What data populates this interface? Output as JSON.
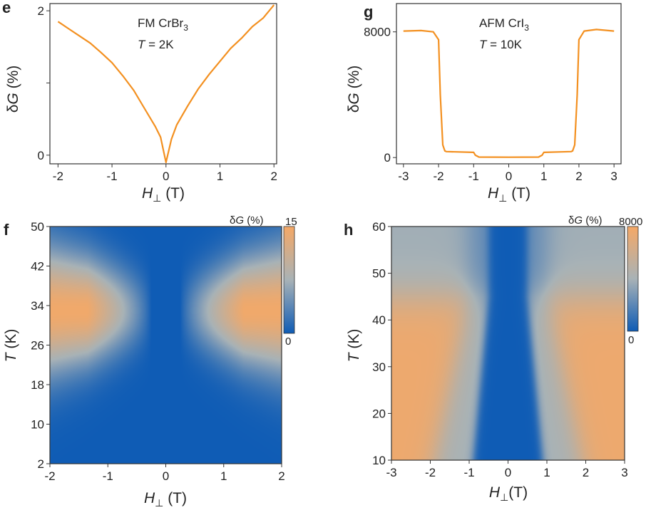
{
  "chart_data": [
    {
      "panel": "e",
      "type": "line",
      "annotation": [
        "FM CrBr",
        "3",
        "T",
        " = 2K"
      ],
      "xlabel": [
        "H",
        "⊥",
        " (T)"
      ],
      "ylabel": [
        "δ",
        "G",
        " (%)"
      ],
      "xlim": [
        -2.15,
        2.05
      ],
      "ylim": [
        -0.12,
        2.1
      ],
      "xticks": [
        "-2",
        "-1",
        "0",
        "1",
        "2"
      ],
      "yticks": [
        "0",
        "1",
        "2"
      ],
      "ytick_labels_shown": [
        "0",
        "2"
      ],
      "color": "#f39020",
      "x": [
        -2.0,
        -1.8,
        -1.6,
        -1.4,
        -1.2,
        -1.0,
        -0.8,
        -0.6,
        -0.4,
        -0.2,
        -0.1,
        0.0,
        0.1,
        0.2,
        0.4,
        0.6,
        0.8,
        1.0,
        1.2,
        1.4,
        1.6,
        1.8,
        2.0
      ],
      "y": [
        1.85,
        1.75,
        1.65,
        1.55,
        1.42,
        1.28,
        1.1,
        0.9,
        0.65,
        0.4,
        0.25,
        -0.1,
        0.22,
        0.42,
        0.68,
        0.92,
        1.12,
        1.3,
        1.48,
        1.62,
        1.78,
        1.9,
        2.08
      ]
    },
    {
      "panel": "g",
      "type": "line",
      "annotation": [
        "AFM CrI",
        "3",
        "T",
        " = 10K"
      ],
      "xlabel": [
        "H",
        "⊥",
        " (T)"
      ],
      "ylabel": [
        "δ",
        "G",
        " (%)"
      ],
      "xlim": [
        -3.2,
        3.2
      ],
      "ylim": [
        -400,
        9800
      ],
      "xticks": [
        "-3",
        "-2",
        "-1",
        "0",
        "1",
        "2",
        "3"
      ],
      "yticks": [
        "0",
        "8000"
      ],
      "color": "#f39020",
      "x": [
        -3.0,
        -2.5,
        -2.15,
        -2.0,
        -1.95,
        -1.88,
        -1.82,
        -1.78,
        -1.5,
        -1.0,
        -0.95,
        -0.85,
        0.0,
        0.85,
        0.95,
        1.0,
        1.5,
        1.78,
        1.82,
        1.88,
        1.95,
        2.0,
        2.15,
        2.5,
        3.0
      ],
      "y": [
        8050,
        8080,
        8000,
        7500,
        4000,
        800,
        420,
        380,
        360,
        330,
        150,
        30,
        20,
        30,
        150,
        330,
        360,
        380,
        420,
        800,
        4000,
        7500,
        8050,
        8150,
        8050
      ]
    },
    {
      "panel": "f",
      "type": "heatmap",
      "xlabel": [
        "H",
        "⊥",
        " (T)"
      ],
      "ylabel": [
        "T",
        " (K)"
      ],
      "xlim": [
        -2,
        2
      ],
      "ylim": [
        2,
        50
      ],
      "xticks": [
        "-2",
        "-1",
        "0",
        "1",
        "2"
      ],
      "yticks": [
        "2",
        "10",
        "18",
        "26",
        "34",
        "42",
        "50"
      ],
      "colorbar": {
        "label": [
          "δ",
          "G",
          " (%)"
        ],
        "max": "15",
        "min": "0",
        "low_color": "#0f5cb5",
        "high_color": "#f5a866"
      },
      "description_values": {
        "peak_T": 33,
        "peak_width_T": 5.5,
        "lobe_tip_field": 0.25
      }
    },
    {
      "panel": "h",
      "type": "heatmap",
      "xlabel": [
        "H",
        "⊥",
        "(T)"
      ],
      "ylabel": [
        "T",
        " (K)"
      ],
      "xlim": [
        -3,
        3
      ],
      "ylim": [
        10,
        60
      ],
      "xticks": [
        "-3",
        "-2",
        "-1",
        "0",
        "1",
        "2",
        "3"
      ],
      "yticks": [
        "10",
        "20",
        "30",
        "40",
        "50",
        "60"
      ],
      "colorbar": {
        "label": [
          "δ",
          "G",
          " (%)"
        ],
        "max": "8000",
        "min": "0",
        "low_color": "#0f5cb5",
        "high_color": "#f5a866"
      },
      "description_values": {
        "inner_field_10K": 0.9,
        "outer_field_10K": 1.9,
        "transition_T": 45
      }
    }
  ]
}
